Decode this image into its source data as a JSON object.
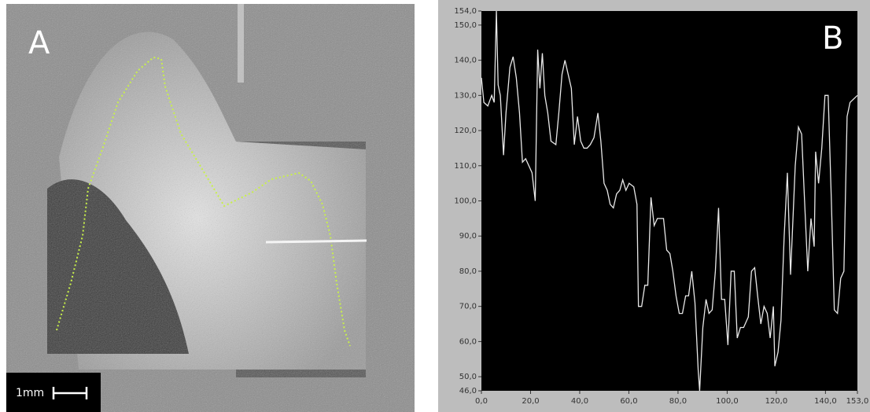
{
  "panel_a": {
    "label": "A",
    "scale_label": "1mm"
  },
  "chart_data": {
    "type": "line",
    "panel_label": "B",
    "x": [
      0,
      1,
      2.6,
      4.2,
      5.2,
      6.1,
      6.8,
      7.7,
      9,
      10,
      11.6,
      12.9,
      14.2,
      15.5,
      16.7,
      18,
      19.3,
      20.6,
      21.9,
      22.9,
      23.8,
      24.8,
      25.8,
      27,
      28.3,
      30.3,
      31.5,
      32.8,
      34,
      35.3,
      36.6,
      37.8,
      39.1,
      40.4,
      41.7,
      43,
      44.3,
      45.8,
      47.4,
      48.6,
      49.9,
      51.2,
      52.4,
      53.7,
      55,
      56.3,
      57.5,
      58.8,
      60.1,
      62,
      63.3,
      63.9,
      65.2,
      66.5,
      67.7,
      69,
      70.3,
      71.6,
      72.8,
      74.1,
      75.4,
      76.7,
      77.9,
      79.2,
      80.5,
      81.8,
      83.1,
      84.3,
      85.6,
      86.9,
      88.2,
      88.8,
      90.1,
      91.4,
      92.6,
      93.9,
      95.2,
      96.5,
      97.7,
      99,
      100.3,
      101.6,
      102.9,
      104.1,
      105.4,
      106.7,
      108.6,
      109.9,
      111.2,
      112.4,
      113.7,
      115,
      116.3,
      117.5,
      118.8,
      119.4,
      120.7,
      121.9,
      123.2,
      124.5,
      125.8,
      127.7,
      129,
      130.3,
      131.5,
      132.8,
      134.1,
      135.4,
      136,
      137.2,
      138.5,
      139.8,
      141.1,
      142.4,
      143.6,
      144.9,
      146.2,
      147.5,
      148.8,
      150,
      153
    ],
    "series": [
      {
        "color": "#e8e8e8",
        "values": [
          135,
          128,
          127,
          130,
          128,
          154,
          133,
          130,
          113,
          125,
          138,
          141,
          135,
          125,
          111,
          112,
          110,
          108,
          100,
          143,
          132,
          142,
          130,
          125,
          117,
          116,
          125,
          136,
          140,
          136,
          132,
          116,
          124,
          117,
          115,
          115,
          116,
          118,
          125,
          117,
          105,
          103,
          99,
          98,
          102,
          103,
          106,
          103,
          105,
          104,
          99,
          70,
          70,
          76,
          76,
          101,
          93,
          95,
          95,
          95,
          86,
          85,
          80,
          73,
          68,
          68,
          73,
          73,
          80,
          71,
          52,
          46,
          64,
          72,
          68,
          69,
          80,
          98,
          72,
          72,
          59,
          80,
          80,
          61,
          64,
          64,
          67,
          80,
          81,
          73,
          65,
          70,
          68,
          61,
          70,
          53,
          57,
          66,
          90,
          108,
          79,
          110,
          121,
          119,
          100,
          80,
          95,
          87,
          114,
          105,
          115,
          130,
          130,
          100,
          69,
          68,
          78,
          80,
          124,
          128,
          130
        ]
      }
    ],
    "xlim": [
      0,
      153
    ],
    "ylim": [
      46,
      154
    ],
    "xticks": [
      {
        "value": 0,
        "label": "0,0"
      },
      {
        "value": 20,
        "label": "20,0"
      },
      {
        "value": 40,
        "label": "40,0"
      },
      {
        "value": 60,
        "label": "60,0"
      },
      {
        "value": 80,
        "label": "80,0"
      },
      {
        "value": 100,
        "label": "100,0"
      },
      {
        "value": 120,
        "label": "120,0"
      },
      {
        "value": 140,
        "label": "140,0"
      },
      {
        "value": 153,
        "label": "153,0"
      }
    ],
    "yticks": [
      {
        "value": 46,
        "label": "46,0"
      },
      {
        "value": 50,
        "label": "50,0"
      },
      {
        "value": 60,
        "label": "60,0"
      },
      {
        "value": 70,
        "label": "70,0"
      },
      {
        "value": 80,
        "label": "80,0"
      },
      {
        "value": 90,
        "label": "90,0"
      },
      {
        "value": 100,
        "label": "100,0"
      },
      {
        "value": 110,
        "label": "110,0"
      },
      {
        "value": 120,
        "label": "120,0"
      },
      {
        "value": 130,
        "label": "130,0"
      },
      {
        "value": 140,
        "label": "140,0"
      },
      {
        "value": 150,
        "label": "150,0"
      },
      {
        "value": 154,
        "label": "154,0"
      }
    ]
  }
}
